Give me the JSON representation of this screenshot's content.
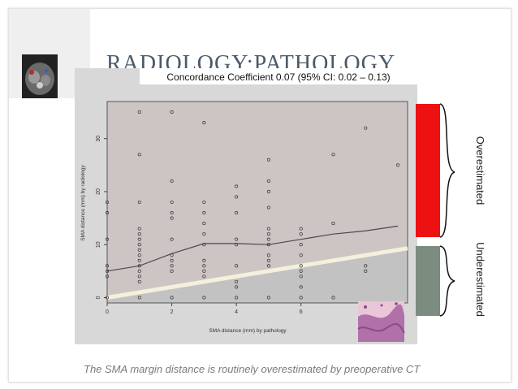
{
  "slide": {
    "title": "RADIOLOGY:PATHOLOGY",
    "caption": "The SMA margin distance is routinely overestimated by preoperative CT",
    "over_label": "Overestimated",
    "under_label": "Underestimated",
    "colors": {
      "overestimated": "#ee1111",
      "underestimated": "#7c8c80",
      "plot_upper": "#cdc4c4",
      "plot_lower": "#c2c2c2",
      "title": "#4a5a6a"
    }
  },
  "chart_data": {
    "type": "scatter",
    "title": "Concordance Coefficient 0.07 (95% CI: 0.02 – 0.13)",
    "xlabel": "SMA distance (mm) by pathology",
    "ylabel": "SMA distance (mm) by radiology",
    "xlim": [
      0,
      9.3
    ],
    "ylim": [
      -1,
      37
    ],
    "xticks": [
      0,
      2,
      4,
      6
    ],
    "yticks": [
      0,
      10,
      20,
      30
    ],
    "grid": false,
    "points": [
      [
        0,
        18
      ],
      [
        0,
        16
      ],
      [
        0,
        11
      ],
      [
        0,
        6
      ],
      [
        0,
        5
      ],
      [
        0,
        4
      ],
      [
        0,
        0
      ],
      [
        1,
        35
      ],
      [
        1,
        27
      ],
      [
        1,
        18
      ],
      [
        1,
        13
      ],
      [
        1,
        12
      ],
      [
        1,
        11
      ],
      [
        1,
        10
      ],
      [
        1,
        9
      ],
      [
        1,
        8
      ],
      [
        1,
        7
      ],
      [
        1,
        6
      ],
      [
        1,
        5
      ],
      [
        1,
        4
      ],
      [
        1,
        3
      ],
      [
        1,
        0
      ],
      [
        2,
        35
      ],
      [
        2,
        22
      ],
      [
        2,
        18
      ],
      [
        2,
        16
      ],
      [
        2,
        15
      ],
      [
        2,
        11
      ],
      [
        2,
        8
      ],
      [
        2,
        7
      ],
      [
        2,
        6
      ],
      [
        2,
        5
      ],
      [
        2,
        0
      ],
      [
        3,
        33
      ],
      [
        3,
        18
      ],
      [
        3,
        16
      ],
      [
        3,
        14
      ],
      [
        3,
        12
      ],
      [
        3,
        10
      ],
      [
        3,
        7
      ],
      [
        3,
        6
      ],
      [
        3,
        5
      ],
      [
        3,
        4
      ],
      [
        3,
        0
      ],
      [
        4,
        21
      ],
      [
        4,
        19
      ],
      [
        4,
        16
      ],
      [
        4,
        11
      ],
      [
        4,
        10
      ],
      [
        4,
        6
      ],
      [
        4,
        3
      ],
      [
        4,
        2
      ],
      [
        4,
        0
      ],
      [
        5,
        26
      ],
      [
        5,
        22
      ],
      [
        5,
        20
      ],
      [
        5,
        17
      ],
      [
        5,
        13
      ],
      [
        5,
        12
      ],
      [
        5,
        11
      ],
      [
        5,
        10
      ],
      [
        5,
        8
      ],
      [
        5,
        7
      ],
      [
        5,
        6
      ],
      [
        5,
        0
      ],
      [
        6,
        13
      ],
      [
        6,
        12
      ],
      [
        6,
        10
      ],
      [
        6,
        8
      ],
      [
        6,
        6
      ],
      [
        6,
        5
      ],
      [
        6,
        4
      ],
      [
        6,
        2
      ],
      [
        6,
        0
      ],
      [
        7,
        27
      ],
      [
        7,
        14
      ],
      [
        7,
        0
      ],
      [
        8,
        32
      ],
      [
        8,
        6
      ],
      [
        8,
        5
      ],
      [
        9,
        25
      ]
    ],
    "lowess": [
      [
        0,
        5
      ],
      [
        1,
        6
      ],
      [
        2,
        8.3
      ],
      [
        3,
        10.2
      ],
      [
        4,
        10.2
      ],
      [
        5,
        10
      ],
      [
        6,
        11
      ],
      [
        7,
        12
      ],
      [
        8,
        12.6
      ],
      [
        9,
        13.5
      ]
    ],
    "identity": [
      [
        0,
        0
      ],
      [
        9.3,
        9.3
      ]
    ]
  }
}
